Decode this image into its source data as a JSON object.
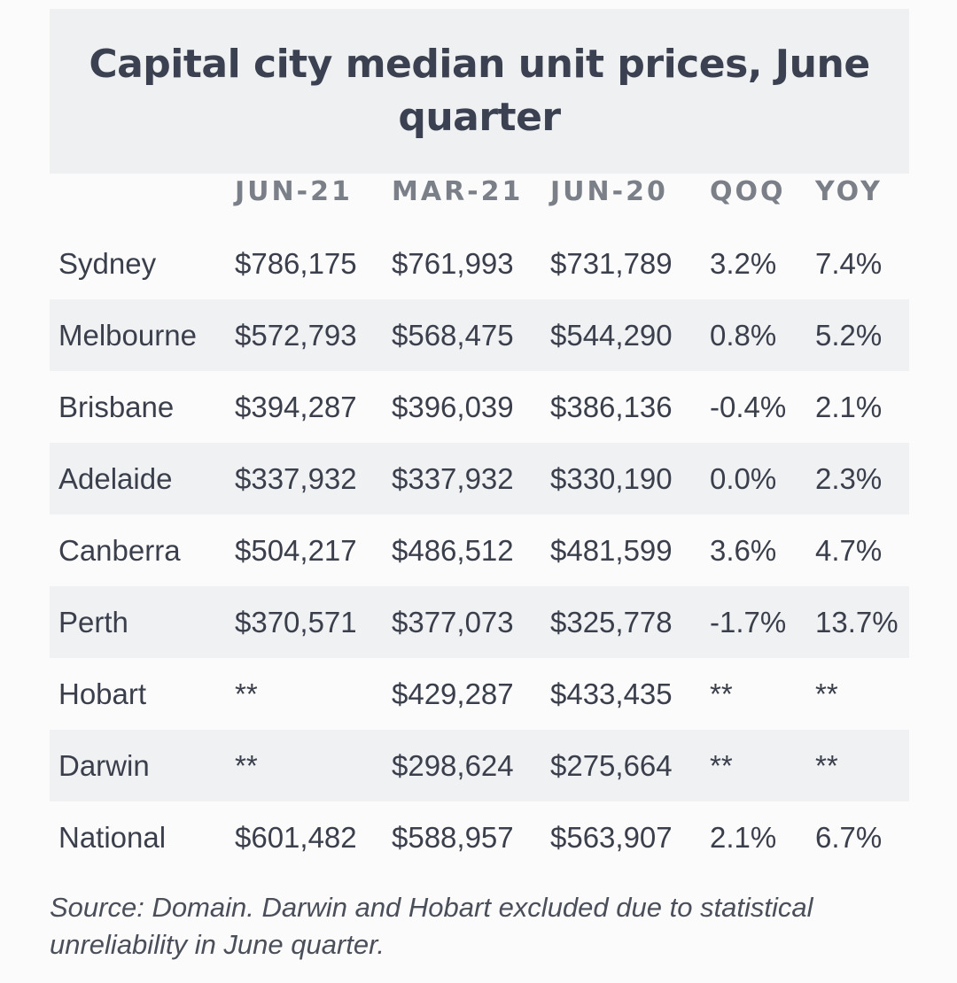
{
  "title": "Capital city median unit prices, June quarter",
  "chart_data": {
    "type": "table",
    "columns": [
      "",
      "JUN-21",
      "MAR-21",
      "JUN-20",
      "QOQ",
      "YOY"
    ],
    "rows": [
      [
        "Sydney",
        "$786,175",
        "$761,993",
        "$731,789",
        "3.2%",
        "7.4%"
      ],
      [
        "Melbourne",
        "$572,793",
        "$568,475",
        "$544,290",
        "0.8%",
        "5.2%"
      ],
      [
        "Brisbane",
        "$394,287",
        "$396,039",
        "$386,136",
        "-0.4%",
        "2.1%"
      ],
      [
        "Adelaide",
        "$337,932",
        "$337,932",
        "$330,190",
        "0.0%",
        "2.3%"
      ],
      [
        "Canberra",
        "$504,217",
        "$486,512",
        "$481,599",
        "3.6%",
        "4.7%"
      ],
      [
        "Perth",
        "$370,571",
        "$377,073",
        "$325,778",
        "-1.7%",
        "13.7%"
      ],
      [
        "Hobart",
        "**",
        "$429,287",
        "$433,435",
        "**",
        "**"
      ],
      [
        "Darwin",
        "**",
        "$298,624",
        "$275,664",
        "**",
        "**"
      ],
      [
        "National",
        "$601,482",
        "$588,957",
        "$563,907",
        "2.1%",
        "6.7%"
      ]
    ]
  },
  "source": "Source: Domain. Darwin and Hobart excluded due to statistical unreliability in June quarter.",
  "colors": {
    "shaded_row": "#f0f1f3",
    "title_background": "#eef0f2",
    "header_text": "#7a7f88",
    "body_text": "#3a3f4b"
  }
}
